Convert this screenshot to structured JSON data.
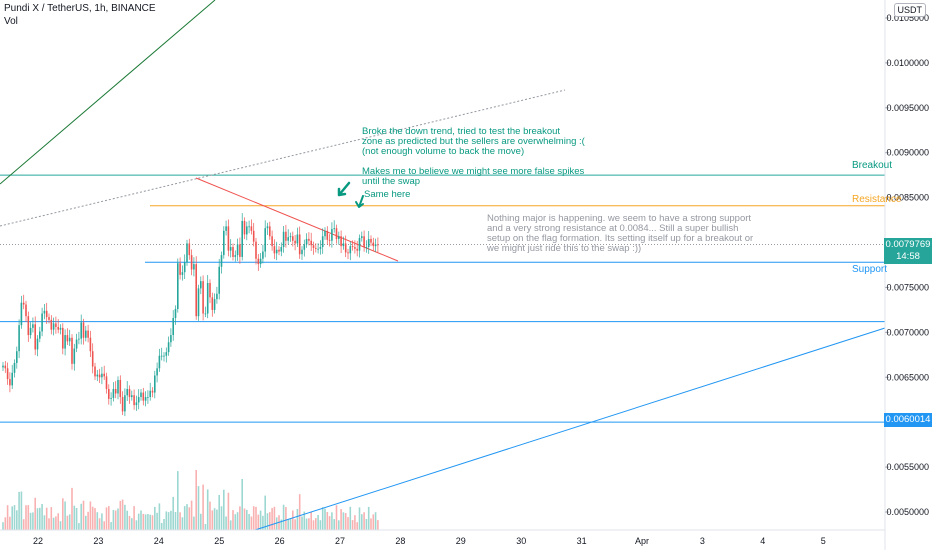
{
  "header": {
    "symbol_line": "Pundi X / TetherUS, 1h, BINANCE",
    "indicator": "Vol",
    "currency": "USDT"
  },
  "annotations": {
    "breakout_note": "Broke the down trend, tried to test the breakout\nzone as predicted but the sellers are overwhelming :(\n(not enough volume to back the move)\n\nMakes me to believe we might see more false spikes\nuntil the swap",
    "same_here": "Same here",
    "analysis_note": "Nothing major is happening. we seem to have a strong support\nand a very strong resistance at 0.0084... Still a super bullish\nsetup on the flag formation. Its setting itself up for a breakout or\nwe might just ride this to the swap :))"
  },
  "levels": {
    "breakout": "Breakout",
    "resistance": "Resistance",
    "support": "Support"
  },
  "price_tags": {
    "current": "0.0079769",
    "countdown": "14:58",
    "level": "0.0060014"
  },
  "colors": {
    "up": "#26a69a",
    "down": "#ef5350",
    "breakout_line": "#26a69a",
    "resistance_line": "#f5a623",
    "support_line": "#2196f3",
    "note_text": "#089981",
    "analysis_text": "#9598a1"
  },
  "chart_data": {
    "type": "candlestick",
    "x_ticks": [
      "22",
      "23",
      "24",
      "25",
      "26",
      "27",
      "28",
      "29",
      "30",
      "31",
      "Apr",
      "3",
      "4",
      "5"
    ],
    "y_ticks": [
      "0.0105000",
      "0.0100000",
      "0.0095000",
      "0.0090000",
      "0.0085000",
      "0.0080000",
      "0.0075000",
      "0.0070000",
      "0.0065000",
      "0.0060000",
      "0.0055000",
      "0.0050000"
    ],
    "ylim": [
      0.0048,
      0.0107
    ],
    "levels": {
      "breakout": 0.00875,
      "resistance": 0.00841,
      "support": 0.00778,
      "level_070": 0.00712,
      "level_060": 0.0060014
    },
    "last_price": 0.0079769,
    "series": [
      {
        "values": [
          0.00663,
          0.0066,
          0.00648,
          0.00641,
          0.00655,
          0.00666,
          0.00679,
          0.00708,
          0.00733,
          0.00731,
          0.00718,
          0.00697,
          0.00705,
          0.00709,
          0.00681,
          0.00693,
          0.00701,
          0.00721,
          0.00724,
          0.00717,
          0.00714,
          0.00703,
          0.0071,
          0.00706,
          0.00703,
          0.00705,
          0.00682,
          0.00697,
          0.0069,
          0.00694,
          0.00665,
          0.00682,
          0.00692,
          0.00693,
          0.00711,
          0.00694,
          0.00702,
          0.00694,
          0.00679,
          0.00662,
          0.00651,
          0.00653,
          0.0065,
          0.00654,
          0.00651,
          0.00637,
          0.00626,
          0.00627,
          0.00637,
          0.00632,
          0.00647,
          0.00628,
          0.00612,
          0.0063,
          0.00637,
          0.00628,
          0.0063,
          0.00619,
          0.00622,
          0.00628,
          0.00633,
          0.00624,
          0.00628,
          0.00628,
          0.00635,
          0.00633,
          0.00652,
          0.0066,
          0.00674,
          0.00674,
          0.00674,
          0.00678,
          0.00689,
          0.00697,
          0.00716,
          0.00726,
          0.00777,
          0.00764,
          0.00767,
          0.00778,
          0.00799,
          0.00786,
          0.0077,
          0.00776,
          0.00718,
          0.00749,
          0.00757,
          0.00721,
          0.00721,
          0.00755,
          0.00739,
          0.00725,
          0.00737,
          0.00743,
          0.00773,
          0.00786,
          0.00813,
          0.00818,
          0.00791,
          0.00795,
          0.00784,
          0.00786,
          0.00798,
          0.00784,
          0.00824,
          0.00809,
          0.00818,
          0.00818,
          0.00813,
          0.00801,
          0.00782,
          0.00776,
          0.00782,
          0.0079,
          0.00816,
          0.00818,
          0.00807,
          0.00796,
          0.00788,
          0.00792,
          0.0079,
          0.00795,
          0.00812,
          0.00802,
          0.00806,
          0.00807,
          0.00802,
          0.00799,
          0.00809,
          0.00787,
          0.00792,
          0.00798,
          0.00804,
          0.00802,
          0.00797,
          0.00794,
          0.00793,
          0.00793,
          0.00795,
          0.00807,
          0.00813,
          0.00803,
          0.00802,
          0.00815,
          0.00816,
          0.00804,
          0.00807,
          0.00796,
          0.00799,
          0.00789,
          0.00788,
          0.00796,
          0.00795,
          0.00793,
          0.00791,
          0.00805,
          0.00807,
          0.00795,
          0.00795,
          0.00804,
          0.008,
          0.00796,
          0.00798,
          0.00797
        ]
      }
    ]
  }
}
